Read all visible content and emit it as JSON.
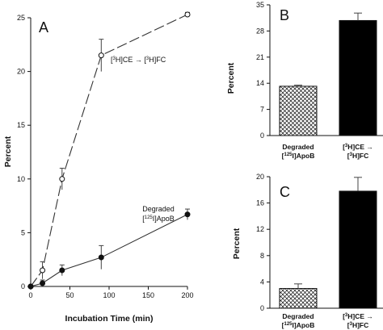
{
  "chart_data": [
    {
      "panel": "A",
      "type": "line",
      "xlabel": "Incubation Time (min)",
      "ylabel": "Percent",
      "xlim": [
        0,
        200
      ],
      "ylim": [
        0,
        25
      ],
      "xticks": [
        0,
        50,
        100,
        150,
        200
      ],
      "yticks": [
        0,
        5,
        10,
        15,
        20,
        25
      ],
      "series": [
        {
          "name": "[3H]CE → [3H]FC",
          "name_parts": [
            "[",
            "3",
            "H]CE → [",
            "3",
            "H]FC"
          ],
          "marker": "open-circle",
          "line": "dashed",
          "x": [
            0,
            15,
            40,
            90,
            200
          ],
          "y": [
            0,
            1.5,
            10.0,
            21.5,
            25.3
          ],
          "err": [
            0,
            0.8,
            1.0,
            1.5,
            0.2
          ]
        },
        {
          "name": "Degraded [125I]ApoB",
          "name_line1": "Degraded",
          "name_parts": [
            "[",
            "125",
            "I]ApoB"
          ],
          "marker": "filled-circle",
          "line": "solid",
          "x": [
            0,
            15,
            40,
            90,
            200
          ],
          "y": [
            0,
            0.3,
            1.5,
            2.7,
            6.7
          ],
          "err": [
            0,
            0.3,
            0.5,
            1.1,
            0.5
          ]
        }
      ]
    },
    {
      "panel": "B",
      "type": "bar",
      "ylabel": "Percent",
      "ylim": [
        0,
        35
      ],
      "yticks": [
        0,
        7,
        14,
        21,
        28,
        35
      ],
      "categories": [
        "Degraded [125I]ApoB",
        "[3H]CE → [3H]FC"
      ],
      "values": [
        13.2,
        30.8
      ],
      "err": [
        0.3,
        2.0
      ],
      "fills": [
        "crosshatch",
        "solid-black"
      ]
    },
    {
      "panel": "C",
      "type": "bar",
      "ylabel": "Percent",
      "ylim": [
        0,
        20
      ],
      "yticks": [
        0,
        4,
        8,
        12,
        16,
        20
      ],
      "categories": [
        "Degraded [125I]ApoB",
        "[3H]CE → [3H]FC"
      ],
      "values": [
        3.0,
        17.8
      ],
      "err": [
        0.7,
        2.1
      ],
      "fills": [
        "crosshatch",
        "solid-black"
      ]
    }
  ],
  "labels": {
    "cat1_line1": "Degraded",
    "cat1_pre": "[",
    "cat1_sup": "125",
    "cat1_post": "I]ApoB",
    "cat2_pre1": "[",
    "cat2_sup1": "3",
    "cat2_mid1": "H]CE →",
    "cat2_pre2": "[",
    "cat2_sup2": "3",
    "cat2_post2": "H]FC"
  }
}
